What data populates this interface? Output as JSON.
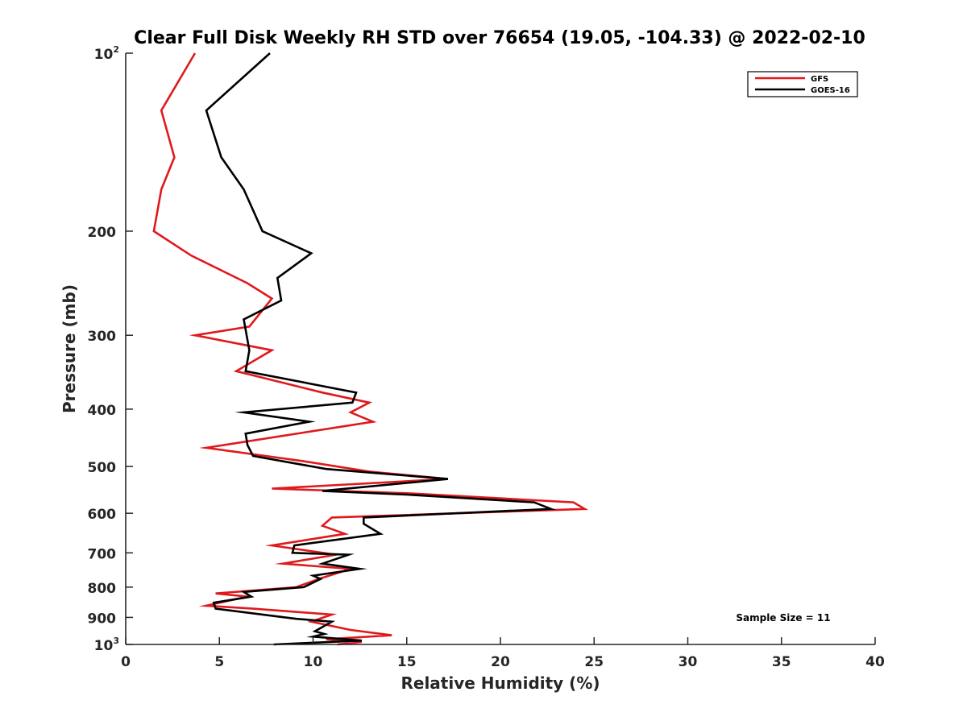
{
  "chart_data": {
    "type": "line",
    "title": "Clear Full Disk Weekly RH STD over 76654 (19.05, -104.33) @ 2022-02-10",
    "xlabel": "Relative Humidity (%)",
    "ylabel": "Pressure (mb)",
    "xlim": [
      0,
      40
    ],
    "ylim": [
      100,
      1000
    ],
    "yscale": "log",
    "y_reversed": true,
    "x_ticks": [
      0,
      5,
      10,
      15,
      20,
      25,
      30,
      35,
      40
    ],
    "x_tick_labels": [
      "0",
      "5",
      "10",
      "15",
      "20",
      "25",
      "30",
      "35",
      "40"
    ],
    "y_ticks": [
      {
        "value": 100,
        "base": "10",
        "exp": "2"
      },
      {
        "value": 200,
        "label": "200"
      },
      {
        "value": 300,
        "label": "300"
      },
      {
        "value": 400,
        "label": "400"
      },
      {
        "value": 500,
        "label": "500"
      },
      {
        "value": 600,
        "label": "600"
      },
      {
        "value": 700,
        "label": "700"
      },
      {
        "value": 800,
        "label": "800"
      },
      {
        "value": 900,
        "label": "900"
      },
      {
        "value": 1000,
        "base": "10",
        "exp": "3"
      }
    ],
    "legend_position": "top-right",
    "annotation": "Sample Size = 11",
    "series": [
      {
        "name": "GFS",
        "color": "#e0191c",
        "points": [
          [
            3.7,
            100
          ],
          [
            1.9,
            125
          ],
          [
            2.6,
            150
          ],
          [
            1.9,
            170
          ],
          [
            1.5,
            200
          ],
          [
            3.5,
            220
          ],
          [
            6.5,
            245
          ],
          [
            7.8,
            260
          ],
          [
            6.6,
            290
          ],
          [
            3.7,
            300
          ],
          [
            7.8,
            318
          ],
          [
            5.9,
            345
          ],
          [
            10.5,
            375
          ],
          [
            13.0,
            390
          ],
          [
            12.0,
            405
          ],
          [
            13.2,
            420
          ],
          [
            4.3,
            465
          ],
          [
            9.5,
            490
          ],
          [
            13.0,
            510
          ],
          [
            17.2,
            525
          ],
          [
            7.8,
            545
          ],
          [
            15.0,
            555
          ],
          [
            23.9,
            575
          ],
          [
            24.5,
            590
          ],
          [
            11.0,
            610
          ],
          [
            10.5,
            630
          ],
          [
            11.7,
            650
          ],
          [
            7.8,
            680
          ],
          [
            11.2,
            705
          ],
          [
            8.4,
            730
          ],
          [
            12.0,
            745
          ],
          [
            10.3,
            775
          ],
          [
            9.1,
            800
          ],
          [
            4.8,
            820
          ],
          [
            6.5,
            830
          ],
          [
            4.3,
            860
          ],
          [
            6.8,
            870
          ],
          [
            11.0,
            890
          ],
          [
            9.9,
            915
          ],
          [
            12.0,
            945
          ],
          [
            14.2,
            965
          ],
          [
            10.7,
            980
          ],
          [
            12.6,
            990
          ],
          [
            11.3,
            1000
          ]
        ]
      },
      {
        "name": "GOES-16",
        "color": "#000000",
        "points": [
          [
            7.7,
            100
          ],
          [
            4.3,
            125
          ],
          [
            5.1,
            150
          ],
          [
            6.3,
            170
          ],
          [
            7.3,
            200
          ],
          [
            9.9,
            218
          ],
          [
            8.1,
            240
          ],
          [
            8.3,
            262
          ],
          [
            6.3,
            282
          ],
          [
            6.6,
            318
          ],
          [
            6.4,
            345
          ],
          [
            12.3,
            375
          ],
          [
            12.1,
            390
          ],
          [
            6.3,
            405
          ],
          [
            9.8,
            420
          ],
          [
            6.4,
            440
          ],
          [
            6.5,
            460
          ],
          [
            6.8,
            480
          ],
          [
            10.7,
            505
          ],
          [
            17.2,
            525
          ],
          [
            10.5,
            550
          ],
          [
            15.0,
            558
          ],
          [
            21.8,
            575
          ],
          [
            22.7,
            590
          ],
          [
            12.7,
            610
          ],
          [
            12.7,
            625
          ],
          [
            13.6,
            650
          ],
          [
            9.0,
            680
          ],
          [
            8.9,
            700
          ],
          [
            11.9,
            705
          ],
          [
            10.5,
            730
          ],
          [
            12.5,
            745
          ],
          [
            10.0,
            765
          ],
          [
            10.4,
            775
          ],
          [
            9.5,
            800
          ],
          [
            6.3,
            815
          ],
          [
            6.7,
            830
          ],
          [
            4.7,
            850
          ],
          [
            4.8,
            870
          ],
          [
            9.1,
            905
          ],
          [
            11.0,
            915
          ],
          [
            10.1,
            950
          ],
          [
            10.6,
            960
          ],
          [
            10.0,
            970
          ],
          [
            12.6,
            985
          ],
          [
            7.9,
            1000
          ]
        ]
      }
    ]
  }
}
